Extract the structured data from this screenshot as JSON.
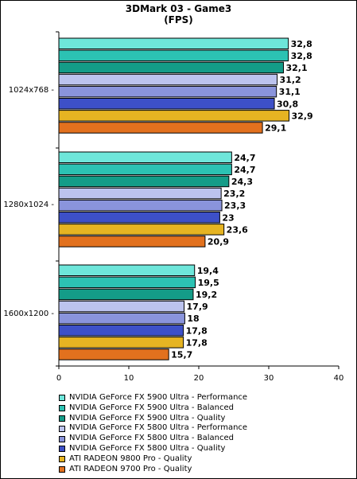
{
  "chart_data": {
    "type": "bar",
    "orientation": "horizontal",
    "title": "3DMark 03 - Game3",
    "subtitle": "(FPS)",
    "categories": [
      "1024x768",
      "1280x1024",
      "1600x1200"
    ],
    "xlim": [
      0,
      40
    ],
    "xticks": [
      0,
      10,
      20,
      30,
      40
    ],
    "grid": false,
    "legend_position": "bottom",
    "series": [
      {
        "name": "NVIDIA GeForce FX 5900 Ultra - Performance",
        "color": "#6ee6da",
        "values": [
          32.8,
          24.7,
          19.4
        ],
        "labels": [
          "32,8",
          "24,7",
          "19,4"
        ]
      },
      {
        "name": "NVIDIA GeForce FX 5900 Ultra - Balanced",
        "color": "#2cc2b3",
        "values": [
          32.8,
          24.7,
          19.5
        ],
        "labels": [
          "32,8",
          "24,7",
          "19,5"
        ]
      },
      {
        "name": "NVIDIA GeForce FX 5900 Ultra - Quality",
        "color": "#149c88",
        "values": [
          32.1,
          24.3,
          19.2
        ],
        "labels": [
          "32,1",
          "24,3",
          "19,2"
        ]
      },
      {
        "name": "NVIDIA GeForce FX 5800 Ultra - Performance",
        "color": "#bcc3ee",
        "values": [
          31.2,
          23.2,
          17.9
        ],
        "labels": [
          "31,2",
          "23,2",
          "17,9"
        ]
      },
      {
        "name": "NVIDIA GeForce FX 5800 Ultra - Balanced",
        "color": "#8a94dc",
        "values": [
          31.1,
          23.3,
          18
        ],
        "labels": [
          "31,1",
          "23,3",
          "18"
        ]
      },
      {
        "name": "NVIDIA GeForce FX 5800 Ultra - Quality",
        "color": "#3d50c8",
        "values": [
          30.8,
          23,
          17.8
        ],
        "labels": [
          "30,8",
          "23",
          "17,8"
        ]
      },
      {
        "name": "ATI RADEON 9800 Pro - Quality",
        "color": "#e6b422",
        "values": [
          32.9,
          23.6,
          17.8
        ],
        "labels": [
          "32,9",
          "23,6",
          "17,8"
        ]
      },
      {
        "name": "ATI RADEON 9700 Pro - Quality",
        "color": "#e2711e",
        "values": [
          29.1,
          20.9,
          15.7
        ],
        "labels": [
          "29,1",
          "20,9",
          "15,7"
        ]
      }
    ]
  }
}
